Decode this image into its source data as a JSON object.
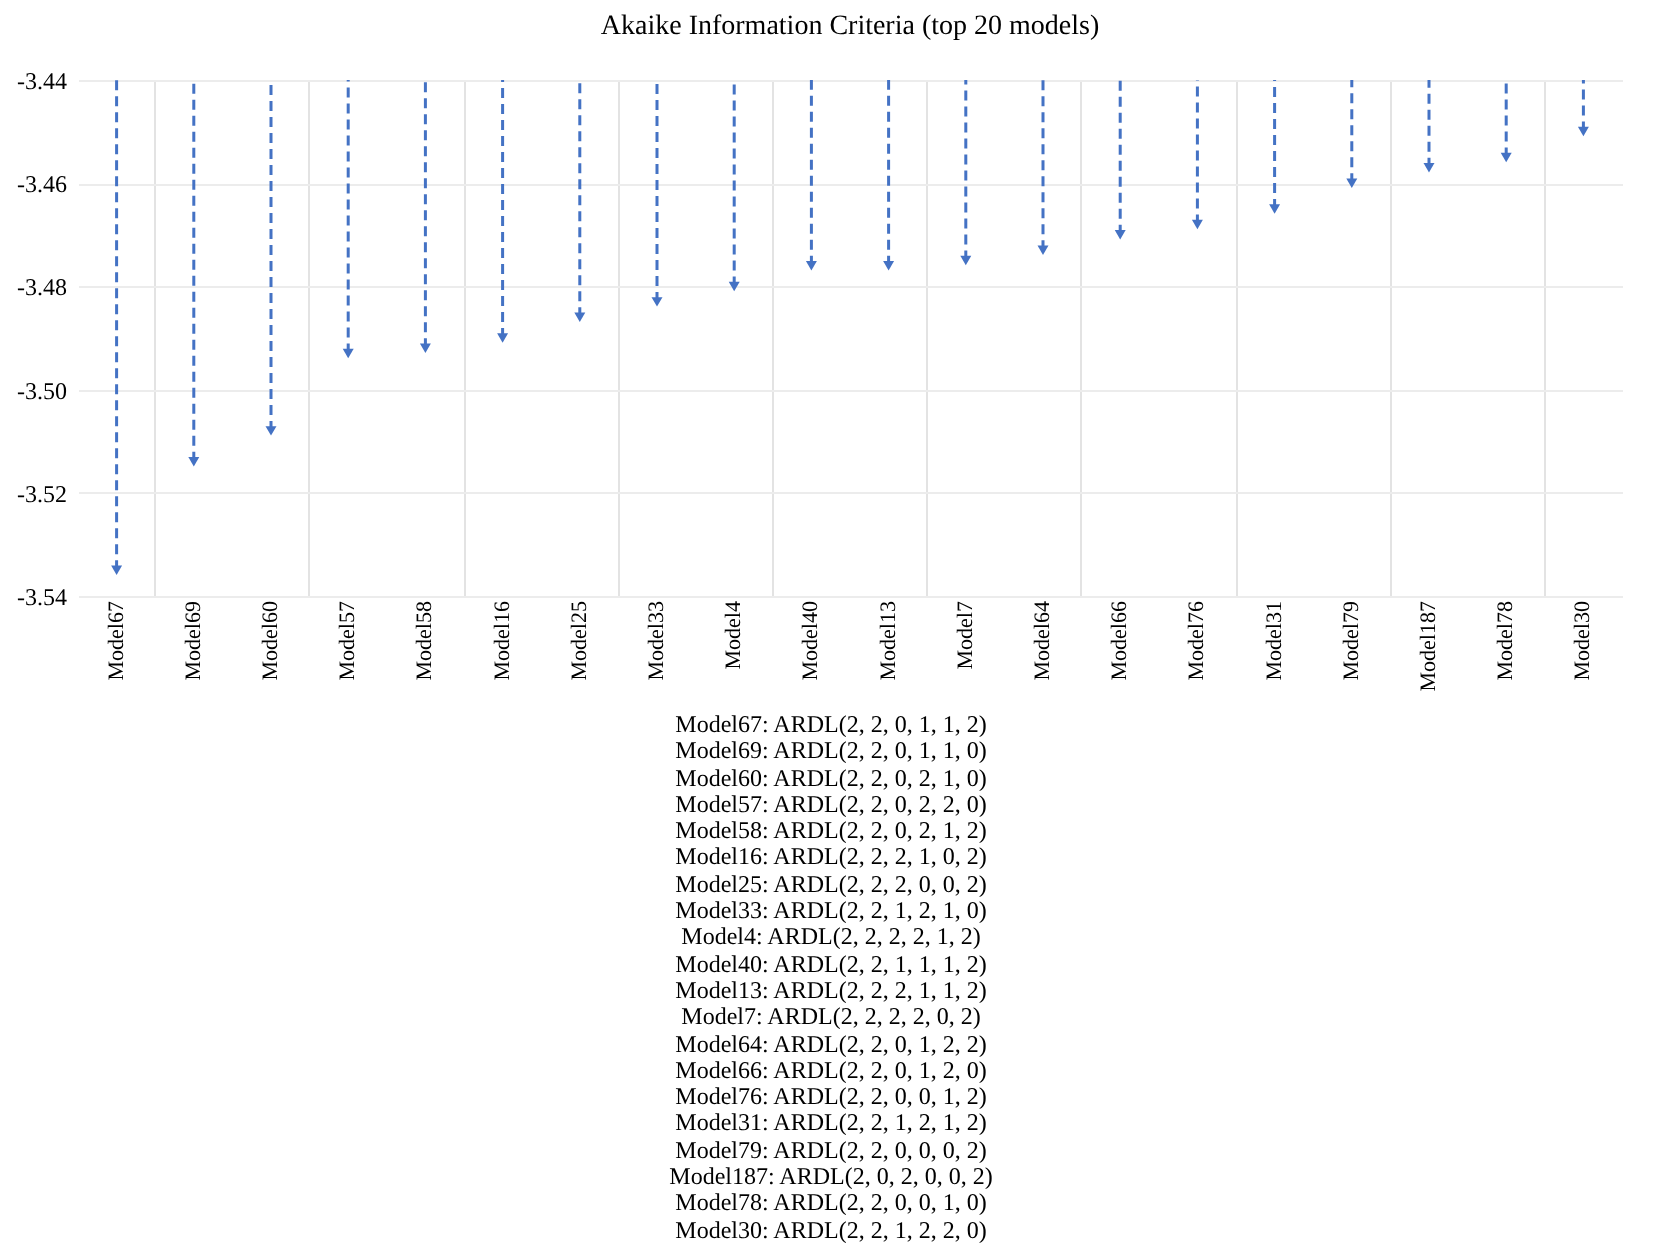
{
  "chart_data": {
    "type": "lollipop",
    "title": "Akaike Information Criteria (top 20 models)",
    "categories": [
      "Model67",
      "Model69",
      "Model60",
      "Model57",
      "Model58",
      "Model16",
      "Model25",
      "Model33",
      "Model4",
      "Model40",
      "Model13",
      "Model7",
      "Model64",
      "Model66",
      "Model76",
      "Model31",
      "Model79",
      "Model187",
      "Model78",
      "Model30"
    ],
    "values": [
      -3.535,
      -3.514,
      -3.508,
      -3.493,
      -3.492,
      -3.49,
      -3.486,
      -3.483,
      -3.48,
      -3.476,
      -3.476,
      -3.475,
      -3.473,
      -3.47,
      -3.468,
      -3.465,
      -3.46,
      -3.457,
      -3.455,
      -3.45
    ],
    "color": "#4472c4",
    "ylim": [
      -3.54,
      -3.44
    ],
    "yticks": [
      {
        "value": -3.54,
        "label": "-3.54"
      },
      {
        "value": -3.52,
        "label": "-3.52"
      },
      {
        "value": -3.5,
        "label": "-3.50"
      },
      {
        "value": -3.48,
        "label": "-3.48"
      },
      {
        "value": -3.46,
        "label": "-3.46"
      },
      {
        "value": -3.44,
        "label": "-3.44"
      }
    ],
    "grid": true,
    "marker": "triangle",
    "line_style": "dashed",
    "annotations": [
      "Model67: ARDL(2, 2, 0, 1, 1, 2)",
      "Model69: ARDL(2, 2, 0, 1, 1, 0)",
      "Model60: ARDL(2, 2, 0, 2, 1, 0)",
      "Model57: ARDL(2, 2, 0, 2, 2, 0)",
      "Model58: ARDL(2, 2, 0, 2, 1, 2)",
      "Model16: ARDL(2, 2, 2, 1, 0, 2)",
      "Model25: ARDL(2, 2, 2, 0, 0, 2)",
      "Model33: ARDL(2, 2, 1, 2, 1, 0)",
      "Model4: ARDL(2, 2, 2, 2, 1, 2)",
      "Model40: ARDL(2, 2, 1, 1, 1, 2)",
      "Model13: ARDL(2, 2, 2, 1, 1, 2)",
      "Model7: ARDL(2, 2, 2, 2, 0, 2)",
      "Model64: ARDL(2, 2, 0, 1, 2, 2)",
      "Model66: ARDL(2, 2, 0, 1, 2, 0)",
      "Model76: ARDL(2, 2, 0, 0, 1, 2)",
      "Model31: ARDL(2, 2, 1, 2, 1, 2)",
      "Model79: ARDL(2, 2, 0, 0, 0, 2)",
      "Model187: ARDL(2, 0, 2, 0, 0, 2)",
      "Model78: ARDL(2, 2, 0, 0, 1, 0)",
      "Model30: ARDL(2, 2, 1, 2, 2, 0)"
    ]
  }
}
